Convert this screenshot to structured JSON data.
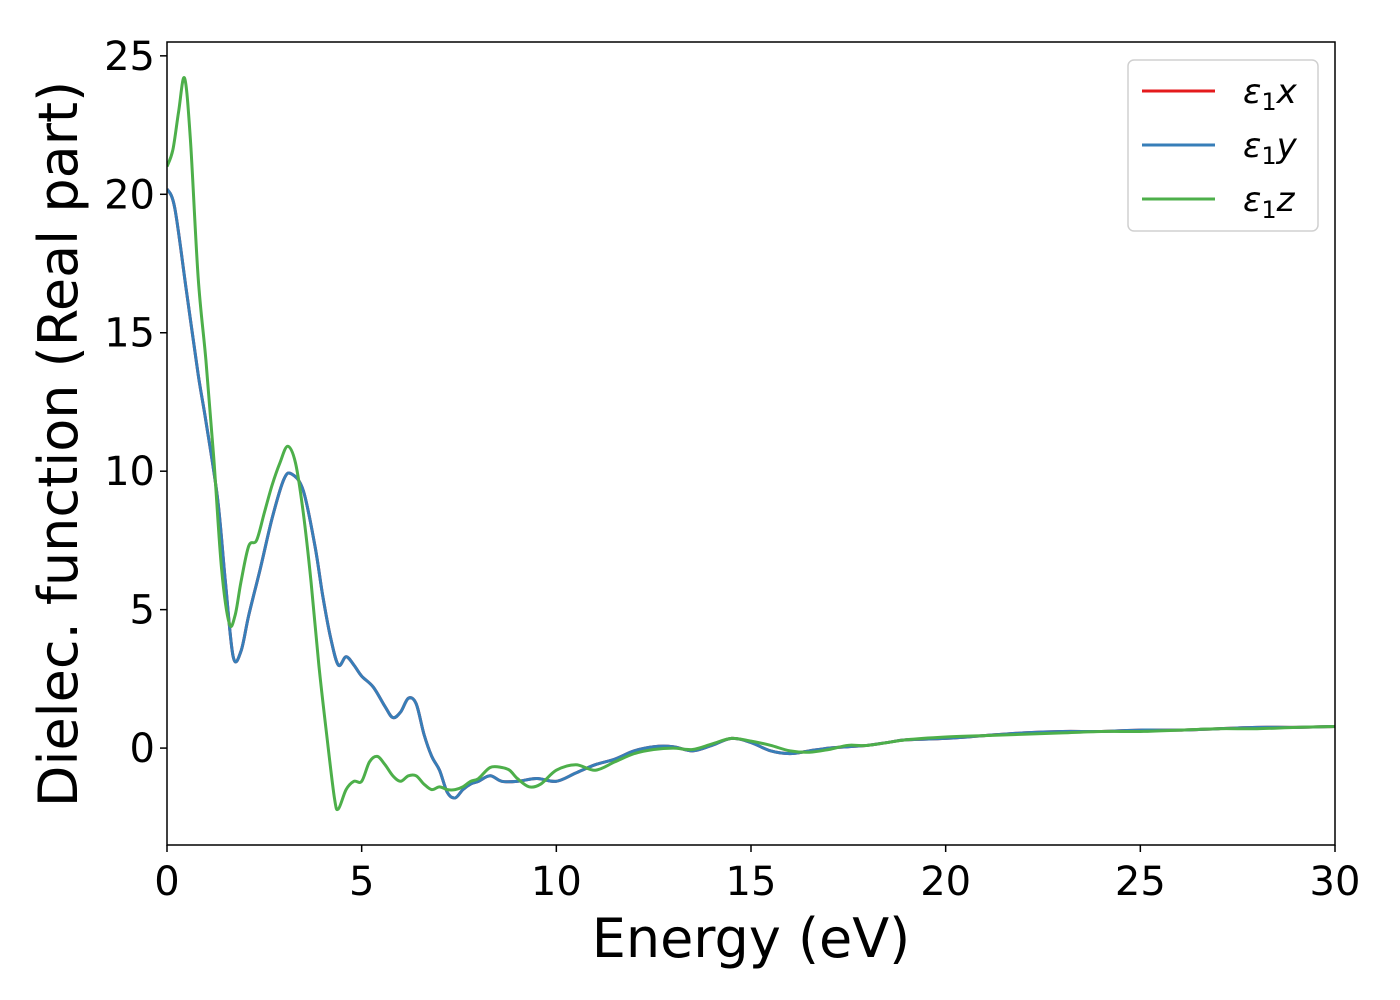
{
  "chart_data": {
    "type": "line",
    "title": "",
    "xlabel": "Energy (eV)",
    "ylabel": "Dielec. function (Real part)",
    "xlim": [
      0,
      30
    ],
    "ylim": [
      -3.5,
      25.5
    ],
    "xticks": [
      0,
      5,
      10,
      15,
      20,
      25,
      30
    ],
    "yticks": [
      0,
      5,
      10,
      15,
      20,
      25
    ],
    "grid": false,
    "legend_position": "top-right",
    "series": [
      {
        "name": "ε1x",
        "legend_symbol": "ε",
        "legend_sub": "1",
        "legend_var": "x",
        "color": "#e41a1c",
        "x": [
          0,
          0.2,
          0.5,
          0.8,
          1.0,
          1.3,
          1.5,
          1.7,
          1.9,
          2.1,
          2.4,
          2.7,
          3.0,
          3.2,
          3.5,
          3.8,
          4.0,
          4.2,
          4.4,
          4.6,
          4.8,
          5.0,
          5.3,
          5.6,
          5.8,
          6.0,
          6.2,
          6.4,
          6.6,
          6.8,
          7.0,
          7.2,
          7.4,
          7.6,
          7.8,
          8.0,
          8.3,
          8.6,
          9.0,
          9.5,
          10.0,
          10.5,
          11.0,
          11.5,
          12.0,
          12.5,
          13.0,
          13.5,
          14.0,
          14.5,
          15.0,
          15.5,
          16.0,
          16.5,
          17.0,
          17.5,
          18.0,
          18.5,
          19.0,
          20.0,
          21.0,
          22.0,
          23.0,
          24.0,
          25.0,
          26.0,
          27.0,
          28.0,
          29.0,
          30.0
        ],
        "y": [
          20.2,
          19.5,
          16.5,
          13.5,
          11.8,
          9.0,
          6.0,
          3.3,
          3.5,
          4.8,
          6.5,
          8.3,
          9.7,
          9.9,
          9.3,
          7.3,
          5.5,
          4.0,
          3.0,
          3.3,
          3.0,
          2.6,
          2.2,
          1.5,
          1.1,
          1.3,
          1.8,
          1.6,
          0.5,
          -0.3,
          -0.8,
          -1.6,
          -1.8,
          -1.5,
          -1.3,
          -1.2,
          -1.0,
          -1.2,
          -1.2,
          -1.1,
          -1.2,
          -0.9,
          -0.6,
          -0.4,
          -0.1,
          0.05,
          0.05,
          -0.1,
          0.1,
          0.35,
          0.2,
          -0.1,
          -0.2,
          -0.1,
          0.0,
          0.05,
          0.1,
          0.2,
          0.3,
          0.35,
          0.45,
          0.55,
          0.6,
          0.6,
          0.65,
          0.65,
          0.7,
          0.75,
          0.75,
          0.78
        ]
      },
      {
        "name": "ε1y",
        "legend_symbol": "ε",
        "legend_sub": "1",
        "legend_var": "y",
        "color": "#377eb8",
        "x": [
          0,
          0.2,
          0.5,
          0.8,
          1.0,
          1.3,
          1.5,
          1.7,
          1.9,
          2.1,
          2.4,
          2.7,
          3.0,
          3.2,
          3.5,
          3.8,
          4.0,
          4.2,
          4.4,
          4.6,
          4.8,
          5.0,
          5.3,
          5.6,
          5.8,
          6.0,
          6.2,
          6.4,
          6.6,
          6.8,
          7.0,
          7.2,
          7.4,
          7.6,
          7.8,
          8.0,
          8.3,
          8.6,
          9.0,
          9.5,
          10.0,
          10.5,
          11.0,
          11.5,
          12.0,
          12.5,
          13.0,
          13.5,
          14.0,
          14.5,
          15.0,
          15.5,
          16.0,
          16.5,
          17.0,
          17.5,
          18.0,
          18.5,
          19.0,
          20.0,
          21.0,
          22.0,
          23.0,
          24.0,
          25.0,
          26.0,
          27.0,
          28.0,
          29.0,
          30.0
        ],
        "y": [
          20.2,
          19.5,
          16.5,
          13.5,
          11.8,
          9.0,
          6.0,
          3.3,
          3.5,
          4.8,
          6.5,
          8.3,
          9.7,
          9.9,
          9.3,
          7.3,
          5.5,
          4.0,
          3.0,
          3.3,
          3.0,
          2.6,
          2.2,
          1.5,
          1.1,
          1.3,
          1.8,
          1.6,
          0.5,
          -0.3,
          -0.8,
          -1.6,
          -1.8,
          -1.5,
          -1.3,
          -1.2,
          -1.0,
          -1.2,
          -1.2,
          -1.1,
          -1.2,
          -0.9,
          -0.6,
          -0.4,
          -0.1,
          0.05,
          0.05,
          -0.1,
          0.1,
          0.35,
          0.2,
          -0.1,
          -0.2,
          -0.1,
          0.0,
          0.05,
          0.1,
          0.2,
          0.3,
          0.35,
          0.45,
          0.55,
          0.6,
          0.6,
          0.65,
          0.65,
          0.7,
          0.75,
          0.75,
          0.78
        ]
      },
      {
        "name": "ε1z",
        "legend_symbol": "ε",
        "legend_sub": "1",
        "legend_var": "z",
        "color": "#4daf4a",
        "x": [
          0,
          0.15,
          0.3,
          0.45,
          0.6,
          0.8,
          1.0,
          1.2,
          1.4,
          1.6,
          1.75,
          1.9,
          2.1,
          2.3,
          2.5,
          2.7,
          2.9,
          3.1,
          3.3,
          3.5,
          3.7,
          3.9,
          4.1,
          4.3,
          4.4,
          4.6,
          4.8,
          5.0,
          5.2,
          5.4,
          5.6,
          5.8,
          6.0,
          6.2,
          6.4,
          6.6,
          6.8,
          7.0,
          7.2,
          7.4,
          7.6,
          7.8,
          8.0,
          8.3,
          8.6,
          8.8,
          9.0,
          9.3,
          9.6,
          10.0,
          10.5,
          11.0,
          11.5,
          12.0,
          12.5,
          13.0,
          13.5,
          14.0,
          14.5,
          15.0,
          15.5,
          16.0,
          16.5,
          17.0,
          17.5,
          18.0,
          19.0,
          20.0,
          21.0,
          22.0,
          23.0,
          24.0,
          25.0,
          26.0,
          27.0,
          28.0,
          29.0,
          30.0
        ],
        "y": [
          21.0,
          21.6,
          23.0,
          24.2,
          22.0,
          17.0,
          14.0,
          10.5,
          6.5,
          4.5,
          4.8,
          6.0,
          7.3,
          7.5,
          8.5,
          9.5,
          10.3,
          10.9,
          10.3,
          8.5,
          6.0,
          3.0,
          0.5,
          -1.8,
          -2.2,
          -1.5,
          -1.2,
          -1.2,
          -0.5,
          -0.3,
          -0.6,
          -1.0,
          -1.2,
          -1.0,
          -1.0,
          -1.3,
          -1.5,
          -1.4,
          -1.5,
          -1.5,
          -1.4,
          -1.2,
          -1.1,
          -0.7,
          -0.7,
          -0.8,
          -1.1,
          -1.4,
          -1.3,
          -0.8,
          -0.6,
          -0.8,
          -0.5,
          -0.2,
          -0.05,
          0.0,
          -0.05,
          0.15,
          0.35,
          0.25,
          0.1,
          -0.1,
          -0.15,
          -0.05,
          0.1,
          0.1,
          0.3,
          0.4,
          0.45,
          0.5,
          0.55,
          0.6,
          0.6,
          0.65,
          0.7,
          0.7,
          0.75,
          0.78
        ]
      }
    ]
  }
}
